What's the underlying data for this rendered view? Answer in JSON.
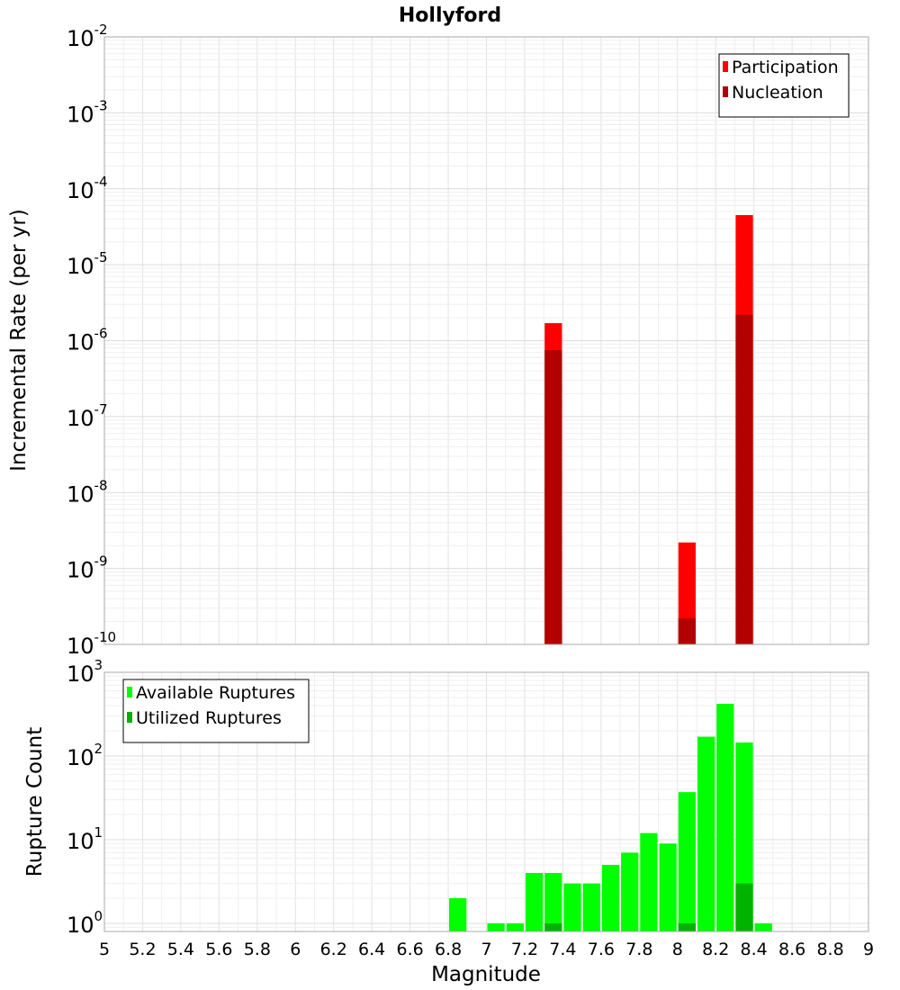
{
  "chart_data": [
    {
      "type": "bar",
      "title": "Hollyford",
      "ylabel": "Incremental Rate (per yr)",
      "xlabel": "",
      "ylog": true,
      "xlim": [
        5,
        9
      ],
      "ylim": [
        1e-10,
        0.01
      ],
      "bin_width": 0.1,
      "grid": true,
      "legend": "top-right",
      "y_tick_labels": [
        {
          "base": "10",
          "exp": "-2",
          "value": 0.01
        },
        {
          "base": "10",
          "exp": "-3",
          "value": 0.001
        },
        {
          "base": "10",
          "exp": "-4",
          "value": 0.0001
        },
        {
          "base": "10",
          "exp": "-5",
          "value": 1e-05
        },
        {
          "base": "10",
          "exp": "-6",
          "value": 1e-06
        },
        {
          "base": "10",
          "exp": "-7",
          "value": 1e-07
        },
        {
          "base": "10",
          "exp": "-8",
          "value": 1e-08
        },
        {
          "base": "10",
          "exp": "-9",
          "value": 1e-09
        },
        {
          "base": "10",
          "exp": "-10",
          "value": 1e-10
        }
      ],
      "series": [
        {
          "name": "Participation",
          "color": "#ff0000",
          "x": [
            7.35,
            8.05,
            8.35
          ],
          "values": [
            1.7e-06,
            2.2e-09,
            4.5e-05
          ]
        },
        {
          "name": "Nucleation",
          "color": "#b30000",
          "x": [
            7.35,
            8.05,
            8.35
          ],
          "values": [
            7.5e-07,
            2.2e-10,
            2.2e-06
          ]
        }
      ]
    },
    {
      "type": "bar",
      "title": "",
      "ylabel": "Rupture Count",
      "xlabel": "Magnitude",
      "ylog": true,
      "xlim": [
        5,
        9
      ],
      "ylim": [
        0.8,
        1000
      ],
      "bin_width": 0.1,
      "grid": true,
      "legend": "top-left",
      "x_tick_labels": [
        "5",
        "5.2",
        "5.4",
        "5.6",
        "5.8",
        "6",
        "6.2",
        "6.4",
        "6.6",
        "6.8",
        "7",
        "7.2",
        "7.4",
        "7.6",
        "7.8",
        "8",
        "8.2",
        "8.4",
        "8.6",
        "8.8",
        "9"
      ],
      "y_tick_labels": [
        {
          "base": "10",
          "exp": "3",
          "value": 1000
        },
        {
          "base": "10",
          "exp": "2",
          "value": 100
        },
        {
          "base": "10",
          "exp": "1",
          "value": 10
        },
        {
          "base": "10",
          "exp": "0",
          "value": 1
        }
      ],
      "series": [
        {
          "name": "Available Ruptures",
          "color": "#00ff00",
          "x": [
            6.85,
            7.05,
            7.15,
            7.25,
            7.35,
            7.45,
            7.55,
            7.65,
            7.75,
            7.85,
            7.95,
            8.05,
            8.15,
            8.25,
            8.35,
            8.45
          ],
          "values": [
            2,
            1,
            1,
            4,
            4,
            3,
            3,
            5,
            7,
            12,
            9,
            37,
            170,
            420,
            145,
            1
          ]
        },
        {
          "name": "Utilized Ruptures",
          "color": "#00b300",
          "x": [
            7.35,
            8.05,
            8.35
          ],
          "values": [
            1,
            1,
            3
          ]
        }
      ]
    }
  ]
}
